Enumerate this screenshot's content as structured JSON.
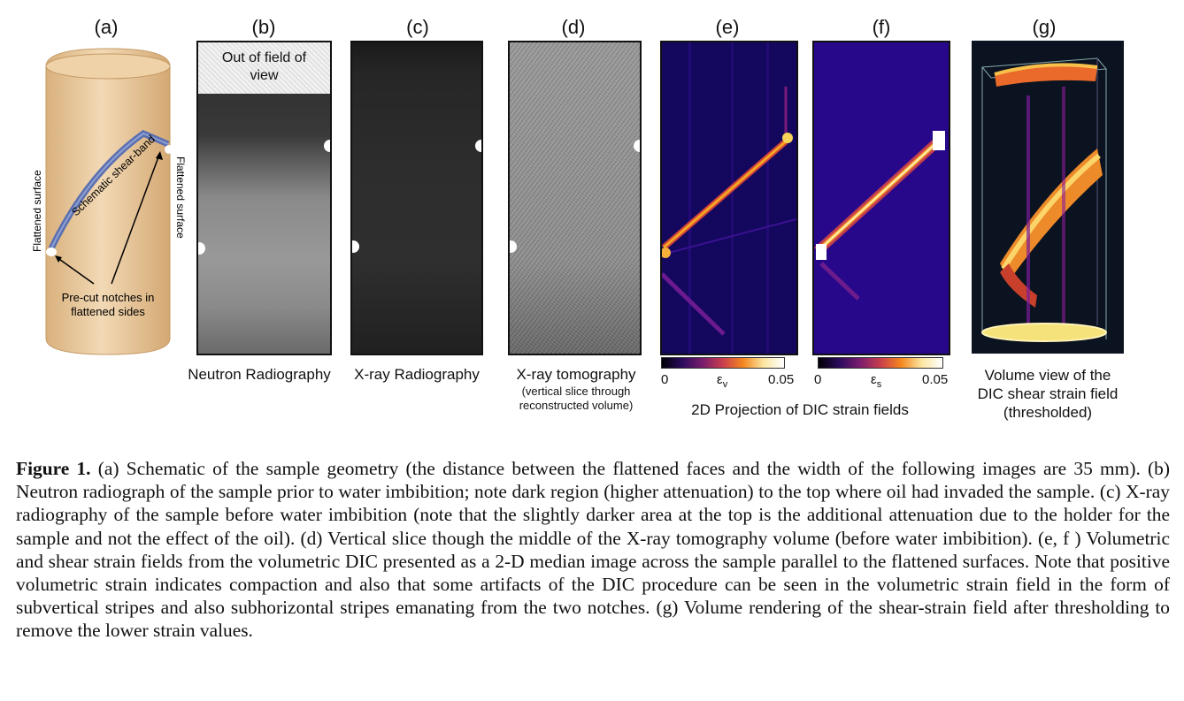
{
  "panels": {
    "a": {
      "letter": "(a)",
      "band_label": "Schematic shear-band",
      "left_surface": "Flattened surface",
      "right_surface": "Flattened surface",
      "notch_label_1": "Pre-cut notches in",
      "notch_label_2": "flattened sides"
    },
    "b": {
      "letter": "(b)",
      "overlay_1": "Out of field of",
      "overlay_2": "view",
      "caption": "Neutron Radiography"
    },
    "c": {
      "letter": "(c)",
      "caption": "X-ray Radiography"
    },
    "d": {
      "letter": "(d)",
      "caption": "X-ray tomography",
      "note_1": "(vertical slice through",
      "note_2": "reconstructed volume)"
    },
    "e": {
      "letter": "(e)",
      "cbar_min": "0",
      "cbar_max": "0.05",
      "cbar_symbol": "ε",
      "cbar_sub": "v"
    },
    "f": {
      "letter": "(f)",
      "cbar_min": "0",
      "cbar_max": "0.05",
      "cbar_symbol": "ε",
      "cbar_sub": "s"
    },
    "ef_caption": "2D Projection of DIC strain fields",
    "g": {
      "letter": "(g)",
      "caption_1": "Volume view of the",
      "caption_2": "DIC shear strain field",
      "caption_3": "(thresholded)"
    }
  },
  "caption": {
    "label": "Figure 1.",
    "text": " (a) Schematic of the sample geometry (the distance between the flattened faces and the width of the following images are 35 mm). (b) Neutron radiograph of the sample prior to water imbibition; note dark region (higher attenuation) to the top where oil had invaded the sample. (c) X-ray radiography of the sample before water imbibition (note that the slightly darker area at the top is the additional attenuation due to the holder for the sample and not the effect of the oil). (d) Vertical slice though the middle of the X-ray tomography volume (before water imbibition). (e, f ) Volumetric and shear strain fields from the volumetric DIC presented as a 2-D median image across the sample parallel to the flattened surfaces. Note that positive volumetric strain indicates compaction and also that some artifacts of the DIC procedure can be seen in the volumetric strain field in the form of subvertical stripes and also subhorizontal stripes emanating from the two notches. (g) Volume rendering of the shear-strain field after thresholding to remove the lower strain values."
  },
  "colors": {
    "cylinder": "#e6c49a",
    "band": "#5a6fb0",
    "inferno_dark": "#0b0340",
    "inferno_hot": "#f7b13a"
  }
}
